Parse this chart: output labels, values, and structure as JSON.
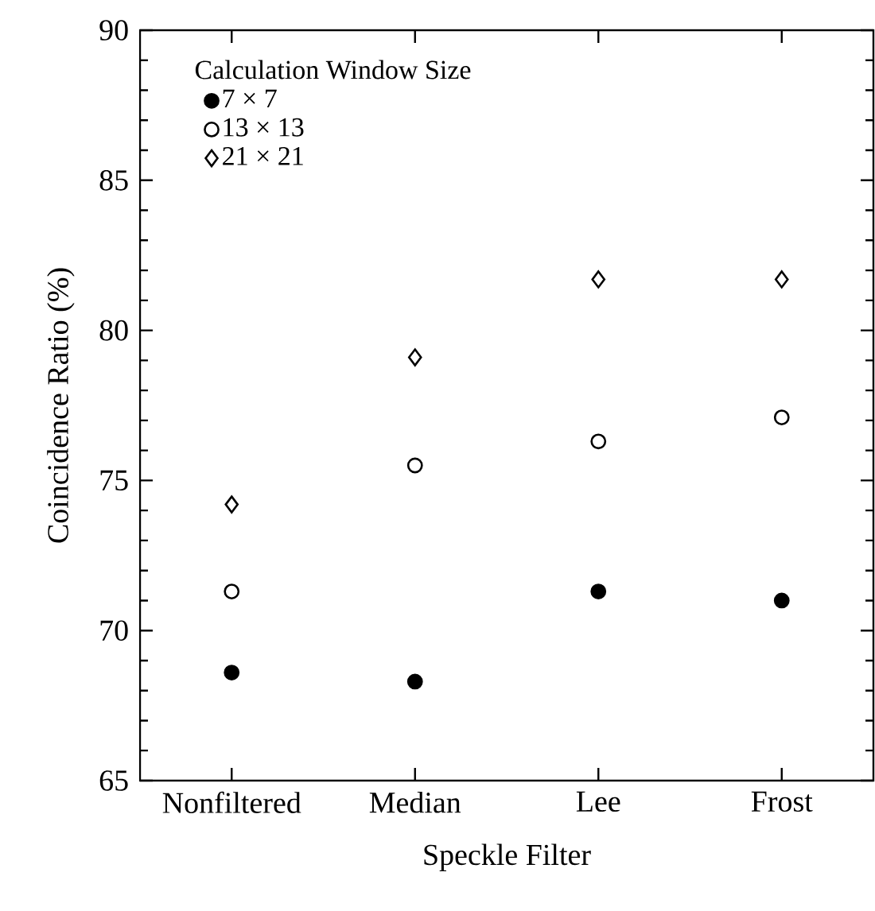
{
  "chart_data": {
    "type": "scatter",
    "xlabel": "Speckle Filter",
    "ylabel": "Coincidence Ratio (%)",
    "legend_title": "Calculation Window Size",
    "categories": [
      "Nonfiltered",
      "Median",
      "Lee",
      "Frost"
    ],
    "series": [
      {
        "name": "7 × 7",
        "color": "#000000",
        "marker": "circle",
        "values": [
          68.6,
          68.3,
          71.3,
          71.0
        ]
      },
      {
        "name": "13 × 13",
        "color": "#ffffff",
        "marker": "circle",
        "values": [
          71.3,
          75.5,
          76.3,
          77.1
        ]
      },
      {
        "name": "21 × 21",
        "color": "#ffffff",
        "marker": "diamond",
        "values": [
          74.2,
          79.1,
          81.7,
          81.7
        ]
      }
    ],
    "ylim": [
      65,
      90
    ],
    "yticks": [
      65,
      70,
      75,
      80,
      85,
      90
    ],
    "legend": "top left",
    "grid": false
  }
}
